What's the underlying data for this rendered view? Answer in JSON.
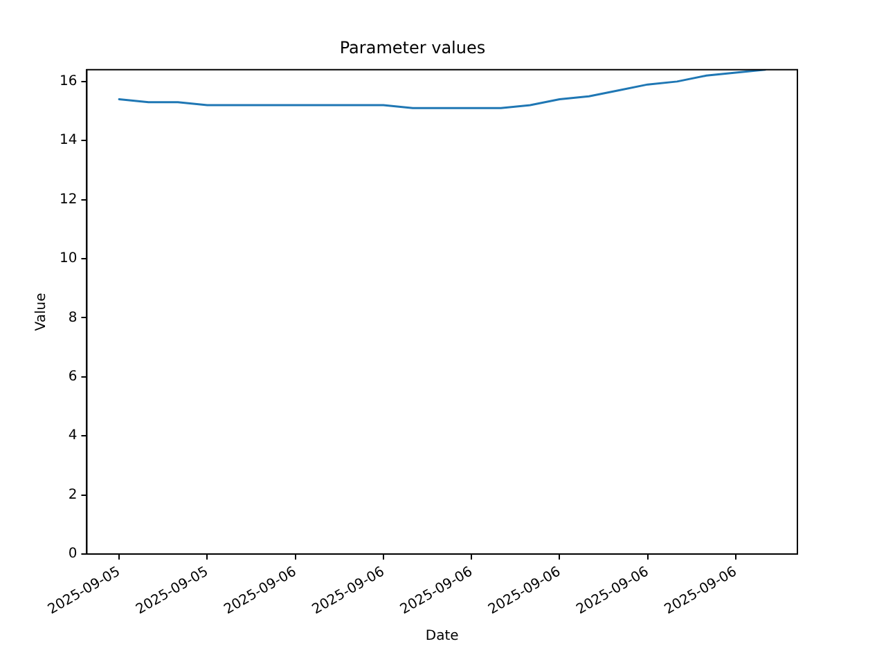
{
  "chart_data": {
    "type": "line",
    "title": "Parameter values",
    "xlabel": "Date",
    "ylabel": "Value",
    "x": [
      "2025-09-05T18:00",
      "2025-09-05T19:00",
      "2025-09-05T20:00",
      "2025-09-05T21:00",
      "2025-09-05T22:00",
      "2025-09-05T23:00",
      "2025-09-06T00:00",
      "2025-09-06T01:00",
      "2025-09-06T02:00",
      "2025-09-06T03:00",
      "2025-09-06T04:00",
      "2025-09-06T05:00",
      "2025-09-06T06:00",
      "2025-09-06T07:00",
      "2025-09-06T08:00",
      "2025-09-06T09:00",
      "2025-09-06T10:00",
      "2025-09-06T11:00",
      "2025-09-06T12:00",
      "2025-09-06T13:00",
      "2025-09-06T14:00",
      "2025-09-06T15:00",
      "2025-09-06T16:00"
    ],
    "series": [
      {
        "color": "#1f77b4",
        "values": [
          15.4,
          15.3,
          15.3,
          15.2,
          15.2,
          15.2,
          15.2,
          15.2,
          15.2,
          15.2,
          15.1,
          15.1,
          15.1,
          15.1,
          15.2,
          15.4,
          15.5,
          15.7,
          15.9,
          16.0,
          16.2,
          16.3,
          16.4
        ]
      }
    ],
    "xlim": [
      "2025-09-05T16:54",
      "2025-09-06T17:06"
    ],
    "xticks": [
      {
        "value": "2025-09-05T18:00",
        "label": "2025-09-05"
      },
      {
        "value": "2025-09-05T21:00",
        "label": "2025-09-05"
      },
      {
        "value": "2025-09-06T00:00",
        "label": "2025-09-06"
      },
      {
        "value": "2025-09-06T03:00",
        "label": "2025-09-06"
      },
      {
        "value": "2025-09-06T06:00",
        "label": "2025-09-06"
      },
      {
        "value": "2025-09-06T09:00",
        "label": "2025-09-06"
      },
      {
        "value": "2025-09-06T12:00",
        "label": "2025-09-06"
      },
      {
        "value": "2025-09-06T15:00",
        "label": "2025-09-06"
      }
    ],
    "ylim": [
      0,
      16.4
    ],
    "yticks": [
      0,
      2,
      4,
      6,
      8,
      10,
      12,
      14,
      16
    ],
    "grid": false,
    "legend": false,
    "marker": "none",
    "line_style": "solid"
  }
}
